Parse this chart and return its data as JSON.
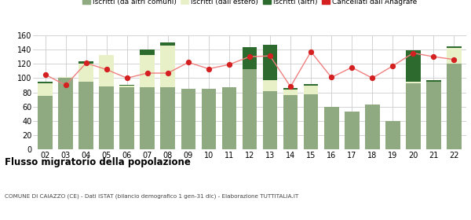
{
  "years": [
    "02",
    "03",
    "04",
    "05",
    "06",
    "07",
    "08",
    "09",
    "10",
    "11",
    "12",
    "13",
    "14",
    "15",
    "16",
    "17",
    "18",
    "19",
    "20",
    "21",
    "22"
  ],
  "iscritti_altri_comuni": [
    75,
    100,
    95,
    88,
    87,
    87,
    87,
    85,
    85,
    87,
    113,
    82,
    76,
    77,
    60,
    53,
    63,
    40,
    93,
    95,
    120
  ],
  "iscritti_estero": [
    18,
    2,
    25,
    44,
    2,
    45,
    58,
    0,
    0,
    0,
    0,
    15,
    8,
    13,
    0,
    0,
    0,
    0,
    2,
    0,
    22
  ],
  "iscritti_altri": [
    2,
    0,
    3,
    0,
    2,
    8,
    5,
    0,
    0,
    0,
    30,
    50,
    2,
    2,
    0,
    0,
    0,
    0,
    44,
    2,
    2
  ],
  "cancellati": [
    105,
    90,
    121,
    112,
    100,
    107,
    107,
    122,
    113,
    119,
    130,
    131,
    88,
    137,
    101,
    115,
    100,
    117,
    135,
    130,
    126
  ],
  "color_altri_comuni": "#8faa80",
  "color_estero": "#e8f0c8",
  "color_altri": "#2d6a2d",
  "color_cancellati": "#d42020",
  "color_cancellati_line": "#f08080",
  "ylim": [
    0,
    160
  ],
  "yticks": [
    0,
    20,
    40,
    60,
    80,
    100,
    120,
    140,
    160
  ],
  "title": "Flusso migratorio della popolazione",
  "subtitle": "COMUNE DI CAIAZZO (CE) - Dati ISTAT (bilancio demografico 1 gen-31 dic) - Elaborazione TUTTITALIA.IT",
  "legend_labels": [
    "Iscritti (da altri comuni)",
    "Iscritti (dall'estero)",
    "Iscritti (altri)",
    "Cancellati dall'Anagrafe"
  ],
  "grid_color": "#cccccc",
  "background_color": "#ffffff"
}
